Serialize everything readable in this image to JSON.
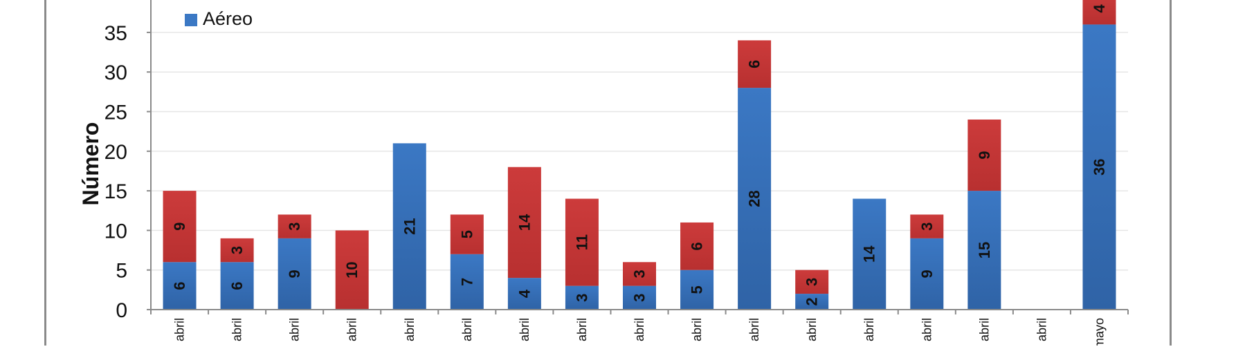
{
  "chart_data": {
    "type": "bar",
    "stacked": true,
    "title": "",
    "xlabel": "",
    "ylabel": "Número",
    "ylim": [
      0,
      39
    ],
    "yticks": [
      0,
      5,
      10,
      15,
      20,
      25,
      30,
      35
    ],
    "grid": true,
    "legend_position": "top-left",
    "categories": [
      "abril",
      "abril",
      "abril",
      "abril",
      "abril",
      "abril",
      "abril",
      "abril",
      "abril",
      "abril",
      "abril",
      "abril",
      "abril",
      "abril",
      "abril",
      "abril",
      "mayo"
    ],
    "series": [
      {
        "name": "Aéreo",
        "color": "#3b78c4",
        "values": [
          6,
          6,
          9,
          0,
          21,
          7,
          4,
          3,
          3,
          5,
          28,
          2,
          14,
          9,
          15,
          0,
          36
        ],
        "labels": [
          "6",
          "6",
          "9",
          "",
          "21",
          "7",
          "4",
          "3",
          "3",
          "5",
          "28",
          "2",
          "14",
          "9",
          "15",
          "",
          "36"
        ]
      },
      {
        "color": "#cc3b3b",
        "values": [
          9,
          3,
          3,
          10,
          0,
          5,
          14,
          11,
          3,
          6,
          6,
          3,
          0,
          3,
          9,
          0,
          4
        ],
        "labels": [
          "9",
          "3",
          "3",
          "10",
          "",
          "5",
          "14",
          "11",
          "3",
          "6",
          "6",
          "3",
          "",
          "3",
          "9",
          "",
          "4"
        ]
      }
    ]
  }
}
